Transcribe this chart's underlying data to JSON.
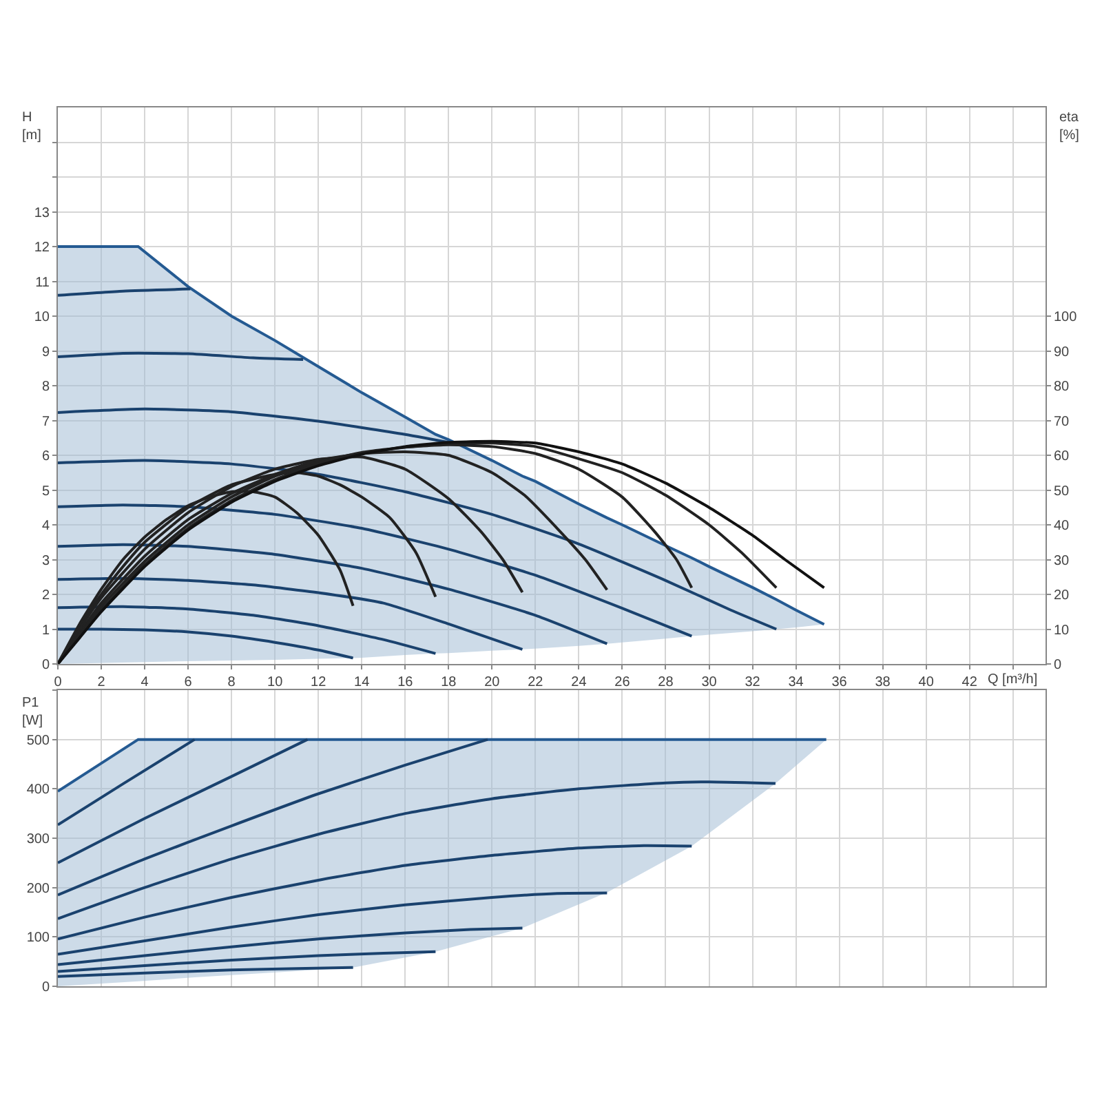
{
  "chart_data": [
    {
      "type": "line",
      "xlabel": "Q [m³/h]",
      "ylabel": "H\n[m]",
      "y2label": "eta\n[%]",
      "grid": true,
      "marker": "none",
      "line_style": "solid",
      "xlim": [
        0,
        45.5
      ],
      "xticks": [
        0,
        2,
        4,
        6,
        8,
        10,
        12,
        14,
        16,
        18,
        20,
        22,
        24,
        26,
        28,
        30,
        32,
        34,
        36,
        38,
        40,
        42,
        {
          "value": 44,
          "label": null
        }
      ],
      "ylim": [
        0,
        16
      ],
      "yticks": [
        0,
        1,
        2,
        3,
        4,
        5,
        6,
        7,
        8,
        9,
        10,
        11,
        12,
        13,
        {
          "value": 14,
          "label": null
        },
        {
          "value": 15,
          "label": null
        }
      ],
      "y2lim": [
        0,
        160
      ],
      "y2ticks": [
        0,
        10,
        20,
        30,
        40,
        50,
        60,
        70,
        80,
        90,
        100
      ],
      "series": [
        {
          "color": "#245a92",
          "x": [
            0,
            3.7,
            6,
            8,
            10,
            12,
            13.6,
            14,
            16,
            17.4,
            18,
            20,
            21.4,
            22,
            24,
            25.3,
            26,
            28,
            29.2,
            30,
            32,
            33.1,
            34,
            35.3
          ],
          "values": [
            12,
            12,
            10.85,
            10.0,
            9.3,
            8.55,
            7.95,
            7.8,
            7.1,
            6.6,
            6.45,
            5.85,
            5.4,
            5.25,
            4.6,
            4.2,
            4.0,
            3.4,
            3.05,
            2.8,
            2.2,
            1.85,
            1.55,
            1.14
          ],
          "lower": [
            0,
            0.05,
            0.08,
            0.1,
            0.12,
            0.15,
            0.17,
            0.18,
            0.26,
            0.3,
            0.31,
            0.38,
            0.42,
            0.44,
            0.52,
            0.58,
            0.62,
            0.73,
            0.8,
            0.84,
            0.94,
            1.0,
            1.05,
            1.14
          ],
          "upper": [
            12,
            12,
            10.85,
            10.0,
            9.3,
            8.55,
            7.95,
            7.8,
            7.1,
            6.6,
            6.45,
            5.85,
            5.4,
            5.25,
            4.6,
            4.2,
            4.0,
            3.4,
            3.05,
            2.8,
            2.2,
            1.85,
            1.55,
            1.14
          ]
        },
        {
          "color": "#1a426e",
          "x": [
            0,
            3,
            6.1
          ],
          "values": [
            10.6,
            10.72,
            10.78
          ]
        },
        {
          "color": "#1a426e",
          "x": [
            0,
            3,
            6,
            9,
            11.3
          ],
          "values": [
            8.83,
            8.93,
            8.92,
            8.8,
            8.75
          ]
        },
        {
          "color": "#1a426e",
          "x": [
            0,
            4,
            8,
            12,
            16,
            18.6
          ],
          "values": [
            7.23,
            7.33,
            7.25,
            6.98,
            6.6,
            6.3
          ]
        },
        {
          "color": "#1a426e",
          "x": [
            0,
            4,
            8,
            12,
            16,
            20,
            24,
            28,
            31,
            33.1
          ],
          "values": [
            5.78,
            5.85,
            5.75,
            5.45,
            4.95,
            4.3,
            3.45,
            2.4,
            1.55,
            1.0
          ]
        },
        {
          "color": "#1a426e",
          "x": [
            0,
            3,
            6,
            10,
            14,
            18,
            22,
            26,
            29.2
          ],
          "values": [
            4.52,
            4.57,
            4.52,
            4.3,
            3.9,
            3.3,
            2.55,
            1.6,
            0.8
          ]
        },
        {
          "color": "#1a426e",
          "x": [
            0,
            3,
            6,
            10,
            14,
            18,
            22,
            25.3
          ],
          "values": [
            3.38,
            3.43,
            3.38,
            3.15,
            2.75,
            2.15,
            1.4,
            0.58
          ]
        },
        {
          "color": "#1a426e",
          "x": [
            0,
            3,
            6,
            9,
            12,
            15,
            18,
            21.4
          ],
          "values": [
            2.43,
            2.46,
            2.4,
            2.27,
            2.05,
            1.75,
            1.15,
            0.42
          ]
        },
        {
          "color": "#1a426e",
          "x": [
            0,
            3,
            6,
            9,
            12,
            15,
            17.4
          ],
          "values": [
            1.62,
            1.65,
            1.58,
            1.4,
            1.1,
            0.7,
            0.3
          ]
        },
        {
          "color": "#1a426e",
          "x": [
            0,
            2,
            4,
            6,
            8,
            10,
            12,
            13.6
          ],
          "values": [
            1.0,
            1.0,
            0.98,
            0.92,
            0.8,
            0.62,
            0.4,
            0.17
          ]
        },
        {
          "color": "#222222",
          "axis": "y2",
          "x": [
            0,
            1,
            2,
            3,
            4,
            5,
            6,
            7,
            8,
            9,
            10,
            11,
            12,
            13,
            13.6
          ],
          "values": [
            0,
            11.5,
            21.5,
            30,
            36.5,
            41.5,
            45.5,
            48,
            49.5,
            49.5,
            48,
            43.5,
            37,
            27,
            16.7
          ]
        },
        {
          "color": "#222222",
          "axis": "y2",
          "x": [
            0,
            1,
            2,
            3,
            4,
            6,
            8,
            10,
            11,
            12,
            13,
            14,
            15.3,
            16.5,
            17.4
          ],
          "values": [
            0,
            11,
            20,
            28,
            35,
            45,
            51.5,
            54.5,
            55,
            54,
            51.5,
            48,
            42,
            32,
            19.3
          ]
        },
        {
          "color": "#222222",
          "axis": "y2",
          "x": [
            0,
            1,
            2,
            4,
            6,
            8,
            10,
            12,
            14,
            16,
            18,
            19.5,
            20.5,
            21.4
          ],
          "values": [
            0,
            10,
            19,
            33,
            43.5,
            51,
            56,
            58.8,
            59.5,
            56,
            47.5,
            38,
            30,
            20.6
          ]
        },
        {
          "color": "#222222",
          "axis": "y2",
          "x": [
            0,
            1,
            2,
            4,
            6,
            8,
            10,
            12,
            14,
            16,
            18,
            20,
            21.5,
            23,
            24.3,
            25.3
          ],
          "values": [
            0,
            9,
            17.5,
            31,
            41.5,
            49,
            54.5,
            58.5,
            60.5,
            61,
            60,
            55,
            48.5,
            39,
            30,
            21.3
          ]
        },
        {
          "color": "#222222",
          "axis": "y2",
          "x": [
            0,
            1,
            2,
            4,
            6,
            8,
            10,
            12,
            14,
            16,
            18,
            20,
            22,
            24,
            26,
            27.5,
            28.5,
            29.2
          ],
          "values": [
            0,
            8.5,
            16.5,
            29.5,
            40,
            48,
            54,
            58,
            60.8,
            62.3,
            63,
            62.5,
            60.5,
            56,
            48,
            38,
            30,
            21.9
          ]
        },
        {
          "color": "#222222",
          "axis": "y2",
          "x": [
            0,
            1,
            2,
            4,
            6,
            8,
            10,
            12,
            14,
            16,
            18,
            20,
            22,
            24,
            26,
            28,
            30,
            31.5,
            33.1
          ],
          "values": [
            0,
            8,
            15.5,
            28.5,
            39,
            47,
            53,
            57.5,
            60.5,
            62.3,
            63.3,
            63.5,
            62.5,
            59,
            55,
            48.5,
            40,
            32,
            21.9
          ]
        },
        {
          "color": "#111111",
          "axis": "y2",
          "x": [
            0,
            1,
            2,
            4,
            6,
            8,
            10,
            12,
            14,
            16,
            18,
            20,
            22,
            24,
            26,
            28,
            30,
            32,
            33.5,
            35.3
          ],
          "values": [
            0,
            7.5,
            15,
            28,
            38.5,
            46.5,
            52.5,
            57,
            60.3,
            62.5,
            63.7,
            64,
            63.5,
            61,
            57.5,
            52,
            45,
            37,
            30,
            21.9
          ]
        }
      ]
    },
    {
      "type": "line",
      "ylabel": "P1\n[W]",
      "grid": true,
      "marker": "none",
      "line_style": "solid",
      "tick_labels": "y",
      "xlim": [
        0,
        45.5
      ],
      "xticks": [
        0,
        2,
        4,
        6,
        8,
        10,
        12,
        14,
        16,
        18,
        20,
        22,
        24,
        26,
        28,
        30,
        32,
        34,
        36,
        38,
        40,
        42,
        44
      ],
      "ylim": [
        0,
        600
      ],
      "yticks": [
        0,
        100,
        200,
        300,
        400,
        500,
        {
          "value": 600,
          "label": null
        }
      ],
      "series": [
        {
          "color": "#245a92",
          "x": [
            0,
            3.7,
            6.3,
            11.5,
            13.6,
            17.4,
            19.8,
            21.4,
            25.3,
            29.2,
            33.06,
            35.4
          ],
          "values": [
            395,
            500,
            500,
            500,
            500,
            500,
            500,
            500,
            500,
            500,
            500,
            500
          ],
          "lower": [
            0,
            10,
            18,
            32,
            38,
            70,
            99,
            118,
            190,
            284,
            411,
            500
          ],
          "upper": [
            395,
            500,
            500,
            500,
            500,
            500,
            500,
            500,
            500,
            500,
            500,
            500
          ]
        },
        {
          "color": "#1a426e",
          "x": [
            0,
            3,
            6.3
          ],
          "values": [
            327,
            410,
            500
          ]
        },
        {
          "color": "#1a426e",
          "x": [
            0,
            4,
            8,
            11.5
          ],
          "values": [
            250,
            340,
            425,
            500
          ]
        },
        {
          "color": "#1a426e",
          "x": [
            0,
            4,
            8,
            12,
            16,
            19.8
          ],
          "values": [
            185,
            258,
            325,
            390,
            448,
            500
          ]
        },
        {
          "color": "#1a426e",
          "x": [
            0,
            4,
            8,
            12,
            16,
            20,
            24,
            28,
            30,
            33.06
          ],
          "values": [
            137,
            200,
            258,
            308,
            350,
            380,
            400,
            412,
            414,
            411
          ]
        },
        {
          "color": "#1a426e",
          "x": [
            0,
            4,
            8,
            12,
            16,
            20,
            24,
            27,
            29.2
          ],
          "values": [
            96,
            140,
            180,
            215,
            245,
            265,
            280,
            285,
            284
          ]
        },
        {
          "color": "#1a426e",
          "x": [
            0,
            4,
            8,
            12,
            16,
            20,
            23,
            25.3
          ],
          "values": [
            65,
            92,
            120,
            145,
            165,
            180,
            188,
            189
          ]
        },
        {
          "color": "#1a426e",
          "x": [
            0,
            4,
            8,
            12,
            16,
            19,
            21.4
          ],
          "values": [
            44,
            62,
            80,
            96,
            108,
            115,
            118
          ]
        },
        {
          "color": "#1a426e",
          "x": [
            0,
            4,
            8,
            12,
            15,
            17.4
          ],
          "values": [
            30,
            42,
            53,
            62,
            67,
            70
          ]
        },
        {
          "color": "#1a426e",
          "x": [
            0,
            4,
            8,
            11,
            13.6
          ],
          "values": [
            20,
            27,
            33,
            36,
            38
          ]
        }
      ]
    }
  ]
}
